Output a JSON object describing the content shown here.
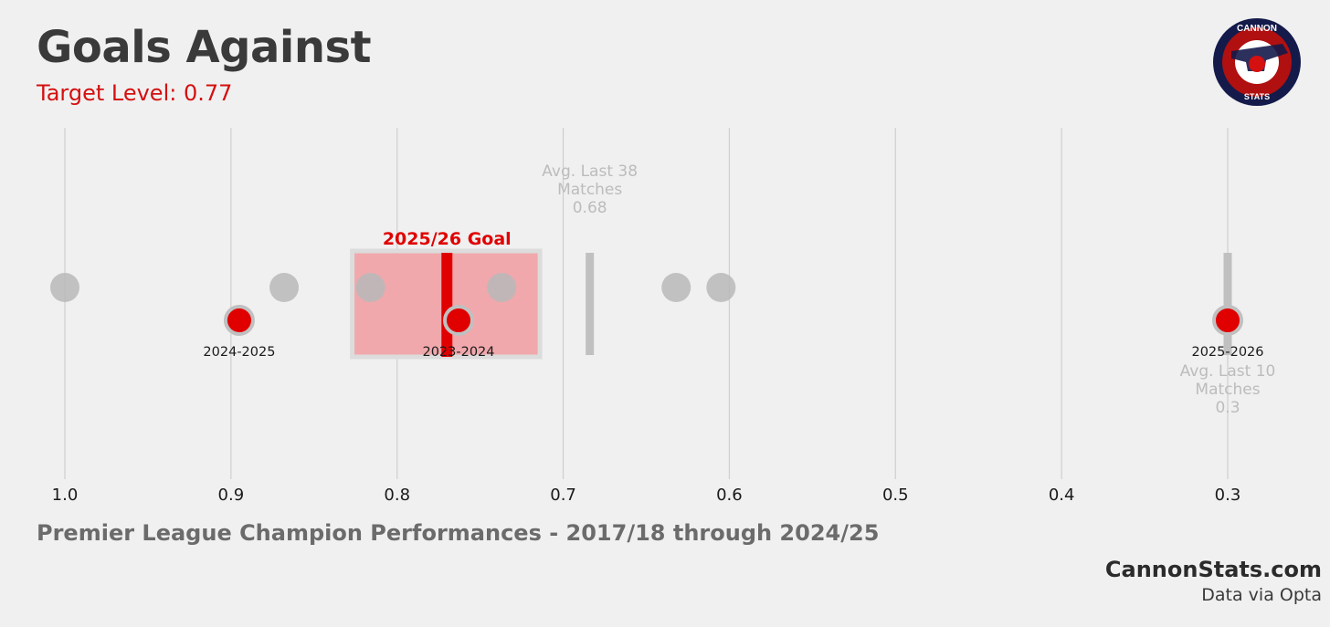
{
  "header": {
    "title": "Goals Against",
    "subtitle": "Target Level: 0.77"
  },
  "logo": {
    "top_text": "CANNON",
    "bottom_text": "STATS",
    "colors": {
      "outer": "#141a4a",
      "ring": "#b01010",
      "inner": "#ffffff",
      "mark": "#d41010"
    }
  },
  "footer": {
    "section_title": "Premier League Champion Performances - 2017/18 through 2024/25",
    "site": "CannonStats.com",
    "source": "Data via Opta"
  },
  "chart_data": {
    "type": "scatter",
    "x_ticks": [
      1.0,
      0.9,
      0.8,
      0.7,
      0.6,
      0.5,
      0.4,
      0.3
    ],
    "x_tick_labels": [
      "1.0",
      "0.9",
      "0.8",
      "0.7",
      "0.6",
      "0.5",
      "0.4",
      "0.3"
    ],
    "x_range": [
      1.0,
      0.3
    ],
    "x_reversed": true,
    "grid": true,
    "colors": {
      "champion": "#b8b8b8",
      "arsenal": "#e00000",
      "arsenal_ring": "#c0c0c0",
      "goal_band": "#f0a8ac",
      "goal_band_border": "#dcdcdc",
      "goal_line": "#e00000",
      "avg_bar": "#c0c0c0",
      "annotation": "#bcbcbc",
      "label": "#1a1a1a"
    },
    "champion_seasons": {
      "values": [
        1.0,
        0.868,
        0.816,
        0.737,
        0.632,
        0.605
      ]
    },
    "arsenal_seasons": [
      {
        "label": "2024-2025",
        "value": 0.895
      },
      {
        "label": "2023-2024",
        "value": 0.763
      },
      {
        "label": "2025-2026",
        "value": 0.3
      }
    ],
    "goal": {
      "label": "2025/26 Goal",
      "value": 0.77,
      "band": [
        0.827,
        0.714
      ]
    },
    "averages": [
      {
        "lines": [
          "Avg. Last 38",
          "Matches",
          "0.68"
        ],
        "value": 0.684
      },
      {
        "lines": [
          "Avg. Last 10",
          "Matches",
          "0.3"
        ],
        "value": 0.3
      }
    ]
  }
}
